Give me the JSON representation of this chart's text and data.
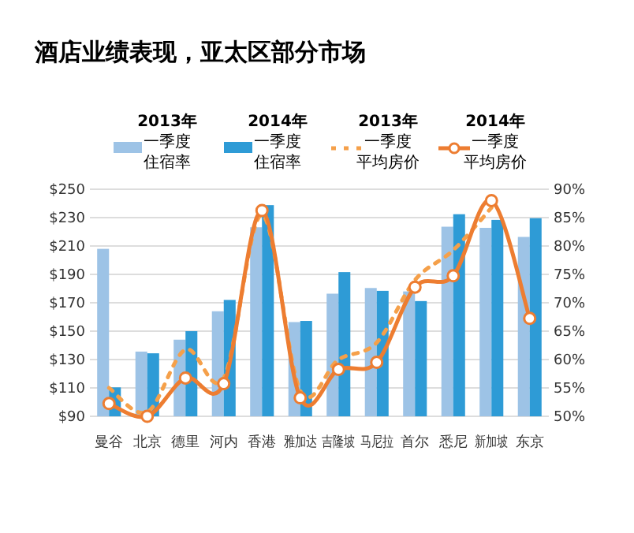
{
  "chart_data": {
    "type": "bar",
    "title": "酒店业绩表现，亚太区部分市场",
    "categories": [
      "曼谷",
      "北京",
      "德里",
      "河内",
      "香港",
      "雅加达",
      "吉隆坡",
      "马尼拉",
      "首尔",
      "悉尼",
      "新加坡",
      "东京"
    ],
    "series": [
      {
        "name": "2013年一季度住宿率",
        "type": "bar",
        "axis": "y2",
        "color": "#9dc3e6",
        "values": [
          79.5,
          61.4,
          63.5,
          68.5,
          83.3,
          66.6,
          71.6,
          72.6,
          72.0,
          83.4,
          83.2,
          81.6
        ]
      },
      {
        "name": "2014年一季度住宿率",
        "type": "bar",
        "axis": "y2",
        "color": "#2e9bd6",
        "values": [
          55.1,
          61.1,
          65.0,
          70.5,
          87.2,
          66.8,
          75.4,
          72.1,
          70.3,
          85.6,
          84.6,
          84.9
        ]
      },
      {
        "name": "2013年一季度平均房价",
        "type": "line",
        "color": "#f5a04a",
        "line_style": "dotted",
        "marker": "none",
        "values": [
          110,
          93,
          137,
          117,
          232,
          108,
          130,
          142,
          186,
          207,
          237,
          null
        ]
      },
      {
        "name": "2014年一季度平均房价",
        "type": "line",
        "color": "#ed7d31",
        "line_style": "solid",
        "marker": "circle",
        "values": [
          99,
          90,
          117,
          113,
          235,
          103,
          123,
          128,
          181,
          189,
          242,
          159
        ]
      }
    ],
    "ylim": [
      90,
      250
    ],
    "yticks": [
      {
        "value": 90,
        "label": "$90"
      },
      {
        "value": 110,
        "label": "$110"
      },
      {
        "value": 130,
        "label": "$130"
      },
      {
        "value": 150,
        "label": "$150"
      },
      {
        "value": 170,
        "label": "$170"
      },
      {
        "value": 190,
        "label": "$190"
      },
      {
        "value": 210,
        "label": "$210"
      },
      {
        "value": 230,
        "label": "$230"
      },
      {
        "value": 250,
        "label": "$250"
      }
    ],
    "y2lim": [
      50,
      90
    ],
    "y2ticks": [
      {
        "value": 50,
        "label": "50%"
      },
      {
        "value": 55,
        "label": "55%"
      },
      {
        "value": 60,
        "label": "60%"
      },
      {
        "value": 65,
        "label": "65%"
      },
      {
        "value": 70,
        "label": "70%"
      },
      {
        "value": 75,
        "label": "75%"
      },
      {
        "value": 80,
        "label": "80%"
      },
      {
        "value": 85,
        "label": "85%"
      },
      {
        "value": 90,
        "label": "90%"
      }
    ],
    "grid": "y",
    "legend": "top"
  }
}
